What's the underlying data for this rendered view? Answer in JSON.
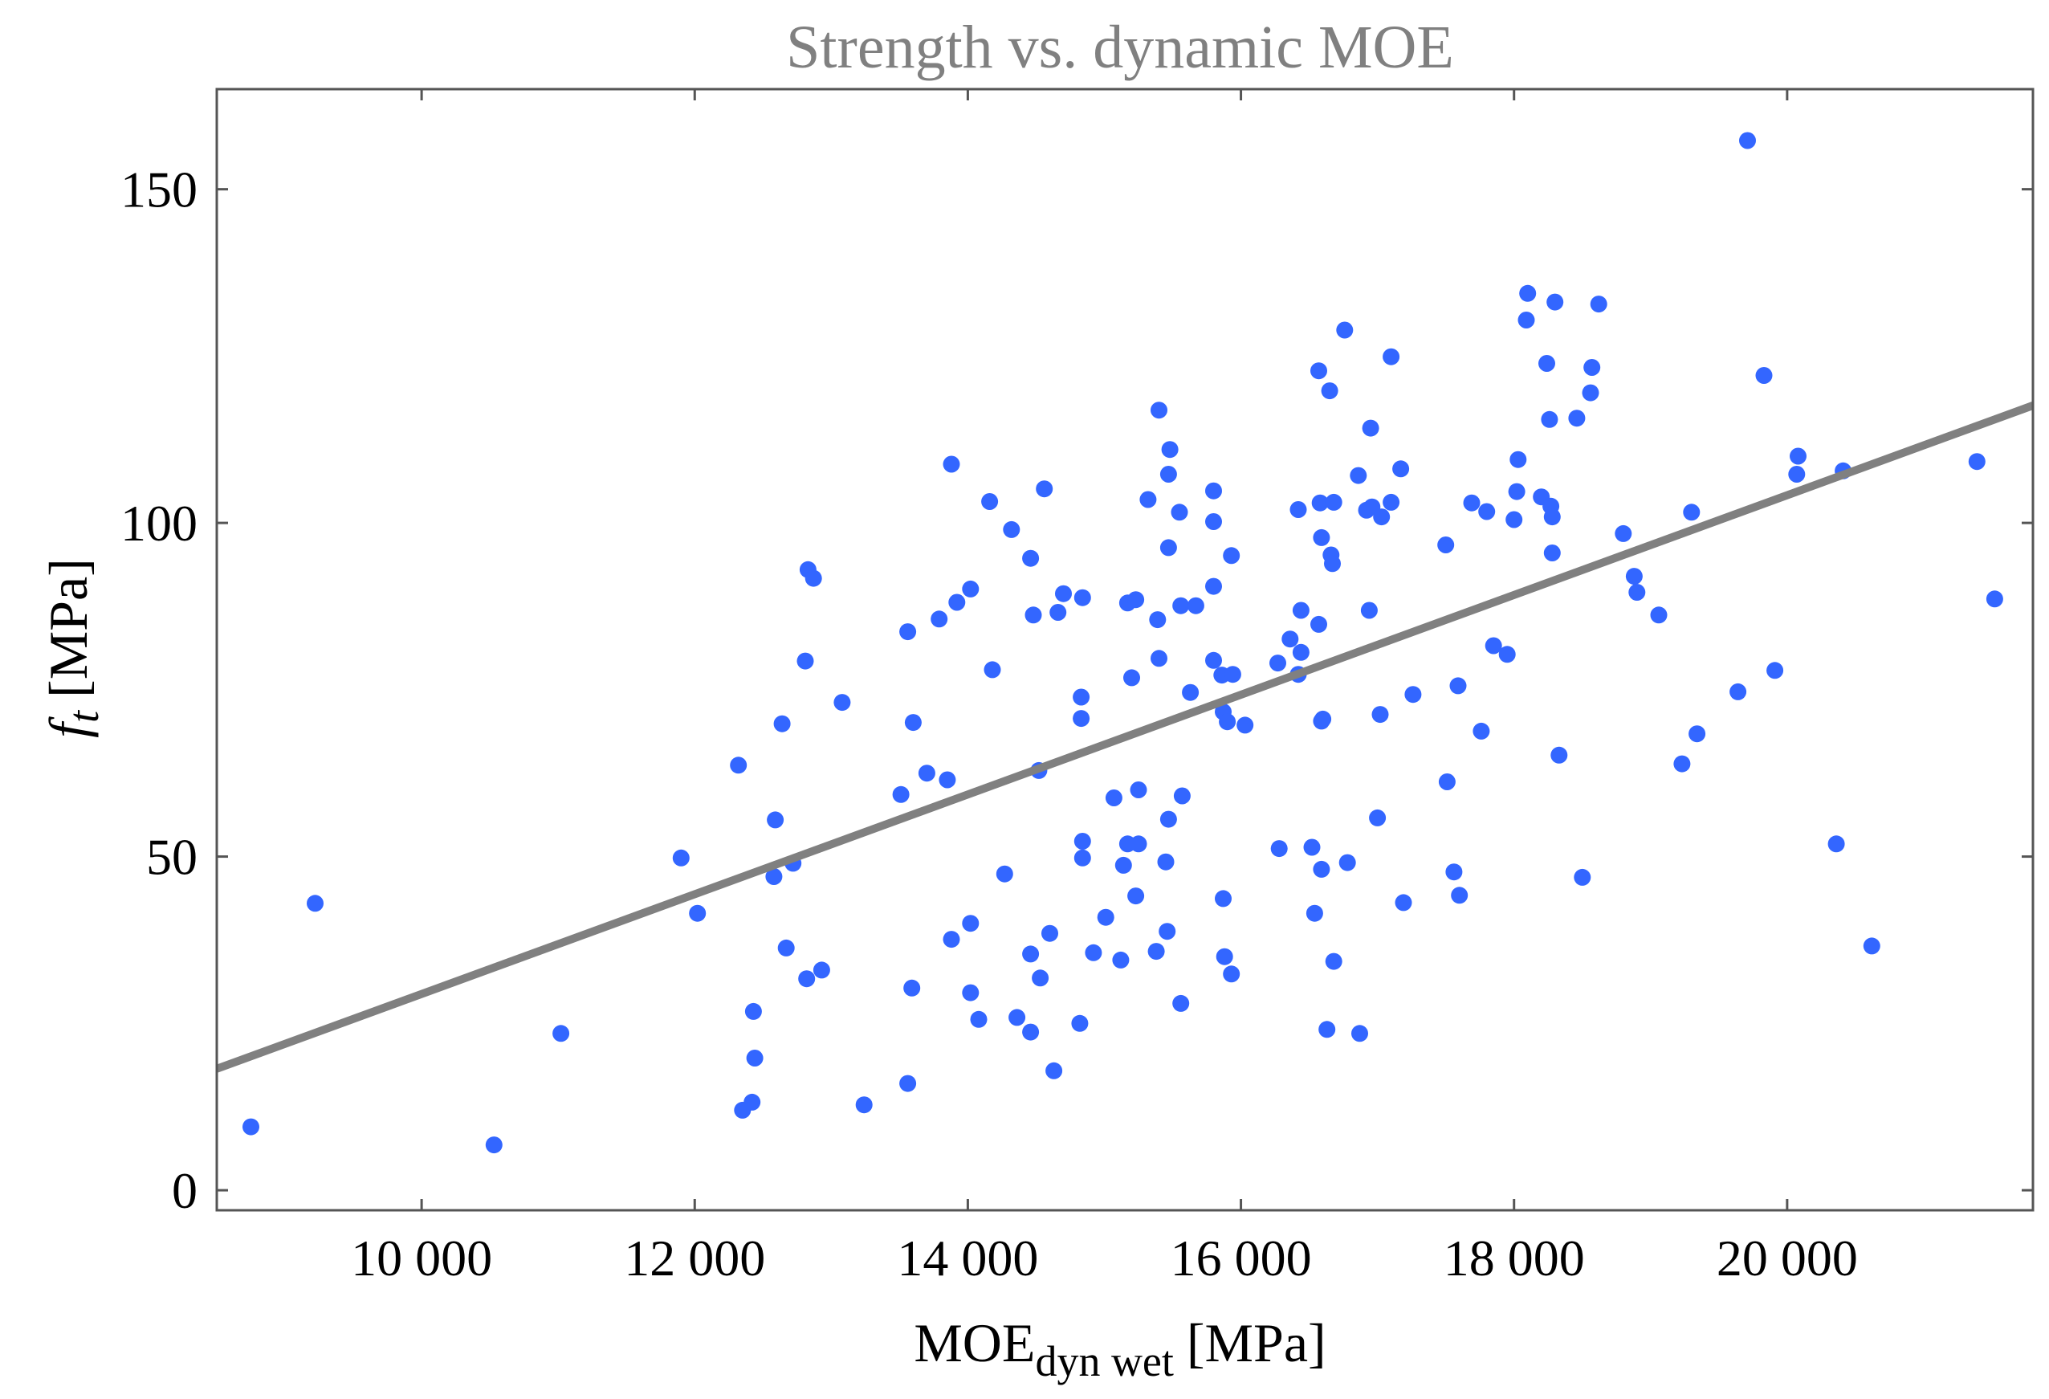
{
  "chart_data": {
    "type": "scatter",
    "title": "Strength vs. dynamic MOE",
    "xlabel": {
      "main": "MOE",
      "subscript": "dyn wet",
      "unit": "[MPa]"
    },
    "ylabel": {
      "main": "f",
      "subscript": "t",
      "unit": "[MPa]"
    },
    "xlim": [
      8500,
      21800
    ],
    "ylim": [
      -3,
      165
    ],
    "xticks": [
      10000,
      12000,
      14000,
      16000,
      18000,
      20000
    ],
    "xtick_labels": [
      "10 000",
      "12 000",
      "14 000",
      "16 000",
      "18 000",
      "20 000"
    ],
    "yticks": [
      0,
      50,
      100,
      150
    ],
    "ytick_labels": [
      "0",
      "50",
      "100",
      "150"
    ],
    "grid": false,
    "colors": {
      "points": "#3366ff",
      "fit_line": "#808080",
      "title": "#808080",
      "frame": "#555555"
    },
    "series": [
      {
        "name": "Specimens",
        "kind": "scatter",
        "points": [
          [
            8750,
            9.5
          ],
          [
            9220,
            43
          ],
          [
            10530,
            6.8
          ],
          [
            11020,
            23.5
          ],
          [
            11900,
            49.8
          ],
          [
            12020,
            41.5
          ],
          [
            12320,
            63.7
          ],
          [
            12350,
            12
          ],
          [
            12420,
            13.2
          ],
          [
            12430,
            26.8
          ],
          [
            12440,
            19.8
          ],
          [
            12580,
            47
          ],
          [
            12590,
            55.5
          ],
          [
            12640,
            69.9
          ],
          [
            12670,
            36.3
          ],
          [
            12720,
            49
          ],
          [
            12820,
            31.7
          ],
          [
            12810,
            79.3
          ],
          [
            12830,
            93
          ],
          [
            12870,
            91.7
          ],
          [
            12930,
            33
          ],
          [
            13080,
            73.1
          ],
          [
            13240,
            12.8
          ],
          [
            13510,
            59.3
          ],
          [
            13560,
            83.7
          ],
          [
            13560,
            16
          ],
          [
            13590,
            30.3
          ],
          [
            13600,
            70.1
          ],
          [
            13700,
            62.5
          ],
          [
            13790,
            85.6
          ],
          [
            13850,
            61.5
          ],
          [
            13880,
            37.6
          ],
          [
            13880,
            108.8
          ],
          [
            13920,
            88.1
          ],
          [
            14020,
            90.1
          ],
          [
            14020,
            40
          ],
          [
            14020,
            29.6
          ],
          [
            14080,
            25.6
          ],
          [
            14160,
            103.2
          ],
          [
            14180,
            78
          ],
          [
            14270,
            47.4
          ],
          [
            14320,
            99
          ],
          [
            14360,
            25.9
          ],
          [
            14460,
            94.7
          ],
          [
            14460,
            35.4
          ],
          [
            14460,
            23.7
          ],
          [
            14480,
            86.2
          ],
          [
            14520,
            62.9
          ],
          [
            14530,
            31.8
          ],
          [
            14560,
            105.1
          ],
          [
            14600,
            38.5
          ],
          [
            14630,
            17.9
          ],
          [
            14660,
            86.6
          ],
          [
            14700,
            89.4
          ],
          [
            14820,
            25
          ],
          [
            14830,
            73.9
          ],
          [
            14830,
            70.7
          ],
          [
            14840,
            88.8
          ],
          [
            14840,
            52.3
          ],
          [
            14840,
            49.8
          ],
          [
            14920,
            35.6
          ],
          [
            15010,
            40.9
          ],
          [
            15070,
            58.8
          ],
          [
            15120,
            34.5
          ],
          [
            15140,
            48.7
          ],
          [
            15170,
            51.9
          ],
          [
            15170,
            88
          ],
          [
            15200,
            76.8
          ],
          [
            15230,
            88.5
          ],
          [
            15230,
            44.1
          ],
          [
            15250,
            51.9
          ],
          [
            15250,
            60
          ],
          [
            15320,
            103.5
          ],
          [
            15380,
            35.8
          ],
          [
            15390,
            85.5
          ],
          [
            15400,
            79.7
          ],
          [
            15400,
            116.9
          ],
          [
            15450,
            49.2
          ],
          [
            15460,
            38.8
          ],
          [
            15470,
            107.3
          ],
          [
            15470,
            96.3
          ],
          [
            15470,
            55.6
          ],
          [
            15480,
            111
          ],
          [
            15550,
            101.6
          ],
          [
            15560,
            87.6
          ],
          [
            15560,
            28
          ],
          [
            15570,
            59.1
          ],
          [
            15630,
            74.6
          ],
          [
            15670,
            87.6
          ],
          [
            15800,
            104.8
          ],
          [
            15800,
            100.2
          ],
          [
            15800,
            90.5
          ],
          [
            15800,
            79.4
          ],
          [
            15860,
            77.2
          ],
          [
            15870,
            71.7
          ],
          [
            15870,
            43.7
          ],
          [
            15880,
            35
          ],
          [
            15900,
            70.2
          ],
          [
            15930,
            95.1
          ],
          [
            15930,
            32.4
          ],
          [
            15940,
            77.3
          ],
          [
            16030,
            69.7
          ],
          [
            16270,
            79
          ],
          [
            16280,
            51.2
          ],
          [
            16360,
            82.6
          ],
          [
            16420,
            77.3
          ],
          [
            16420,
            102
          ],
          [
            16440,
            86.9
          ],
          [
            16440,
            80.6
          ],
          [
            16520,
            51.4
          ],
          [
            16540,
            41.5
          ],
          [
            16570,
            84.8
          ],
          [
            16570,
            122.8
          ],
          [
            16580,
            103
          ],
          [
            16590,
            70.3
          ],
          [
            16590,
            97.8
          ],
          [
            16590,
            48.1
          ],
          [
            16600,
            70.6
          ],
          [
            16630,
            24.1
          ],
          [
            16650,
            119.8
          ],
          [
            16660,
            95.2
          ],
          [
            16670,
            93.9
          ],
          [
            16680,
            34.3
          ],
          [
            16680,
            103.1
          ],
          [
            16760,
            128.9
          ],
          [
            16780,
            49.1
          ],
          [
            16860,
            107.1
          ],
          [
            16870,
            23.5
          ],
          [
            16920,
            101.9
          ],
          [
            16940,
            86.9
          ],
          [
            16950,
            114.2
          ],
          [
            16960,
            102.4
          ],
          [
            17000,
            55.8
          ],
          [
            17020,
            71.3
          ],
          [
            17030,
            100.9
          ],
          [
            17100,
            103.1
          ],
          [
            17100,
            124.9
          ],
          [
            17170,
            108.1
          ],
          [
            17190,
            43.1
          ],
          [
            17260,
            74.3
          ],
          [
            17500,
            96.7
          ],
          [
            17510,
            61.2
          ],
          [
            17560,
            47.7
          ],
          [
            17590,
            75.6
          ],
          [
            17600,
            44.2
          ],
          [
            17690,
            103
          ],
          [
            17760,
            68.8
          ],
          [
            17800,
            101.7
          ],
          [
            17850,
            81.6
          ],
          [
            17950,
            80.3
          ],
          [
            18000,
            100.5
          ],
          [
            18020,
            104.7
          ],
          [
            18030,
            109.5
          ],
          [
            18090,
            130.4
          ],
          [
            18100,
            134.4
          ],
          [
            18200,
            103.9
          ],
          [
            18240,
            123.9
          ],
          [
            18260,
            115.5
          ],
          [
            18270,
            102.5
          ],
          [
            18280,
            95.5
          ],
          [
            18280,
            100.9
          ],
          [
            18300,
            133.1
          ],
          [
            18330,
            65.2
          ],
          [
            18460,
            115.7
          ],
          [
            18500,
            46.9
          ],
          [
            18560,
            119.5
          ],
          [
            18570,
            123.3
          ],
          [
            18620,
            132.8
          ],
          [
            18800,
            98.4
          ],
          [
            18880,
            92
          ],
          [
            18900,
            89.6
          ],
          [
            19060,
            86.2
          ],
          [
            19230,
            63.9
          ],
          [
            19300,
            101.6
          ],
          [
            19340,
            68.4
          ],
          [
            19640,
            74.7
          ],
          [
            19710,
            157.3
          ],
          [
            19830,
            122.1
          ],
          [
            19910,
            77.9
          ],
          [
            20070,
            107.3
          ],
          [
            20080,
            110
          ],
          [
            20360,
            51.9
          ],
          [
            20410,
            107.8
          ],
          [
            20620,
            36.6
          ],
          [
            21390,
            109.2
          ],
          [
            21520,
            88.6
          ]
        ]
      },
      {
        "name": "Linear fit",
        "kind": "line",
        "points": [
          [
            8500,
            18.2
          ],
          [
            21800,
            117.6
          ]
        ]
      }
    ]
  }
}
